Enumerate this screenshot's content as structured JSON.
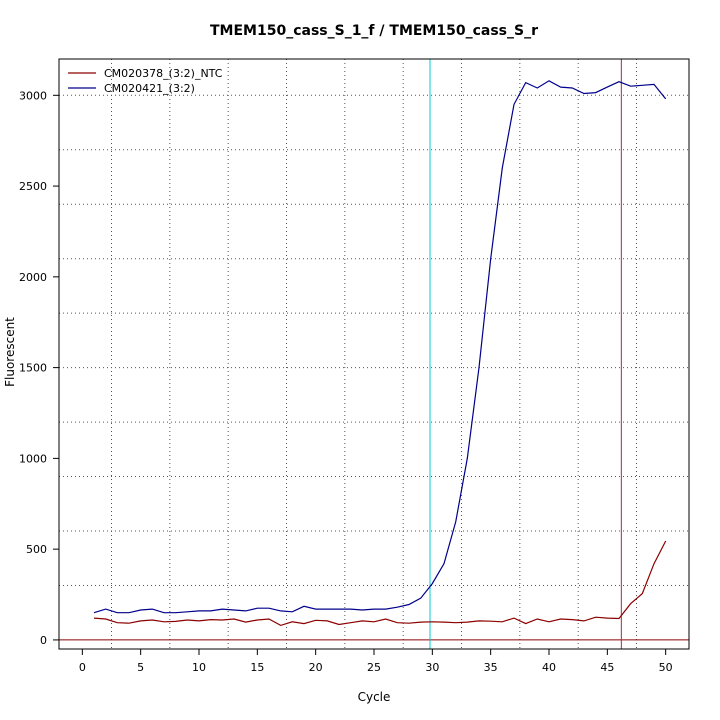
{
  "chart_data": {
    "type": "line",
    "title": "TMEM150_cass_S_1_f / TMEM150_cass_S_r",
    "xlabel": "Cycle",
    "ylabel": "Fluorescent",
    "xlim": [
      -2,
      52
    ],
    "ylim": [
      -50,
      3200
    ],
    "xticks": [
      0,
      5,
      10,
      15,
      20,
      25,
      30,
      35,
      40,
      45,
      50
    ],
    "yticks": [
      0,
      500,
      1000,
      1500,
      2000,
      2500,
      3000
    ],
    "grid": "dotted",
    "legend_position": "top-left",
    "baseline": {
      "y": 0,
      "color": "#8b0000"
    },
    "threshold_lines": [
      {
        "x": 29.8,
        "color": "#00ced1"
      },
      {
        "x": 46.2,
        "color": "#a0303a"
      }
    ],
    "x": [
      1,
      2,
      3,
      4,
      5,
      6,
      7,
      8,
      9,
      10,
      11,
      12,
      13,
      14,
      15,
      16,
      17,
      18,
      19,
      20,
      21,
      22,
      23,
      24,
      25,
      26,
      27,
      28,
      29,
      30,
      31,
      32,
      33,
      34,
      35,
      36,
      37,
      38,
      39,
      40,
      41,
      42,
      43,
      44,
      45,
      46,
      47,
      48,
      49,
      50
    ],
    "series": [
      {
        "name": "CM020378_(3:2)_NTC",
        "color": "#8b0000",
        "values": [
          120,
          115,
          95,
          92,
          105,
          110,
          100,
          102,
          110,
          105,
          112,
          110,
          115,
          98,
          110,
          115,
          80,
          100,
          90,
          108,
          105,
          85,
          95,
          105,
          100,
          115,
          95,
          92,
          98,
          100,
          98,
          95,
          98,
          105,
          103,
          100,
          120,
          90,
          115,
          100,
          115,
          112,
          105,
          125,
          120,
          118,
          200,
          255,
          420,
          545
        ]
      },
      {
        "name": "CM020421_(3:2)",
        "color": "#00008b",
        "values": [
          150,
          170,
          150,
          150,
          165,
          170,
          150,
          150,
          155,
          160,
          160,
          170,
          165,
          160,
          175,
          175,
          160,
          155,
          185,
          170,
          170,
          170,
          170,
          165,
          170,
          170,
          180,
          195,
          230,
          310,
          420,
          650,
          1000,
          1500,
          2100,
          2600,
          2950,
          3070,
          3040,
          3080,
          3045,
          3040,
          3010,
          3015,
          3045,
          3075,
          3050,
          3055,
          3060,
          2980
        ]
      }
    ]
  }
}
